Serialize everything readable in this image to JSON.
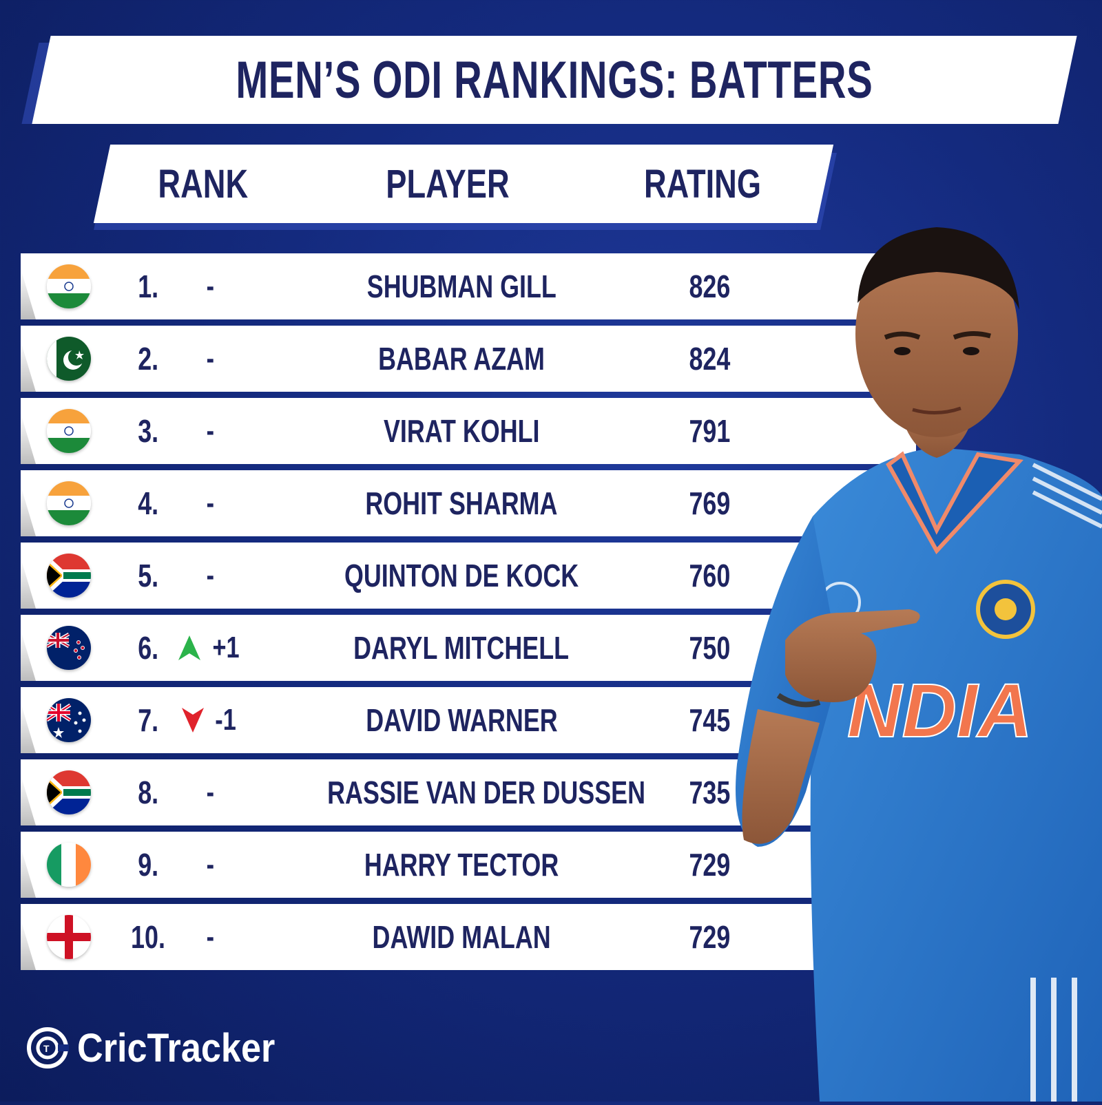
{
  "title": "MEN’S ODI RANKINGS: BATTERS",
  "headers": {
    "rank": "RANK",
    "player": "PLAYER",
    "rating": "RATING"
  },
  "rows": [
    {
      "rank": "1.",
      "change": "-",
      "trend": "none",
      "player": "SHUBMAN GILL",
      "rating": "826",
      "flag": "india-flag-icon"
    },
    {
      "rank": "2.",
      "change": "-",
      "trend": "none",
      "player": "BABAR AZAM",
      "rating": "824",
      "flag": "pakistan-flag-icon"
    },
    {
      "rank": "3.",
      "change": "-",
      "trend": "none",
      "player": "VIRAT KOHLI",
      "rating": "791",
      "flag": "india-flag-icon"
    },
    {
      "rank": "4.",
      "change": "-",
      "trend": "none",
      "player": "ROHIT SHARMA",
      "rating": "769",
      "flag": "india-flag-icon"
    },
    {
      "rank": "5.",
      "change": "-",
      "trend": "none",
      "player": "QUINTON DE KOCK",
      "rating": "760",
      "flag": "south-africa-flag-icon"
    },
    {
      "rank": "6.",
      "change": "+1",
      "trend": "up",
      "player": "DARYL MITCHELL",
      "rating": "750",
      "flag": "new-zealand-flag-icon"
    },
    {
      "rank": "7.",
      "change": "-1",
      "trend": "down",
      "player": "DAVID WARNER",
      "rating": "745",
      "flag": "australia-flag-icon"
    },
    {
      "rank": "8.",
      "change": "-",
      "trend": "none",
      "player": "RASSIE VAN DER DUSSEN",
      "rating": "735",
      "flag": "south-africa-flag-icon"
    },
    {
      "rank": "9.",
      "change": "-",
      "trend": "none",
      "player": "HARRY TECTOR",
      "rating": "729",
      "flag": "ireland-flag-icon"
    },
    {
      "rank": "10.",
      "change": "-",
      "trend": "none",
      "player": "DAWID MALAN",
      "rating": "729",
      "flag": "england-flag-icon"
    }
  ],
  "colors": {
    "navy": "#1e2460",
    "background": "#142a7e",
    "up": "#2bb34a",
    "down": "#e0222b"
  },
  "brand": {
    "name": "CricTracker"
  }
}
